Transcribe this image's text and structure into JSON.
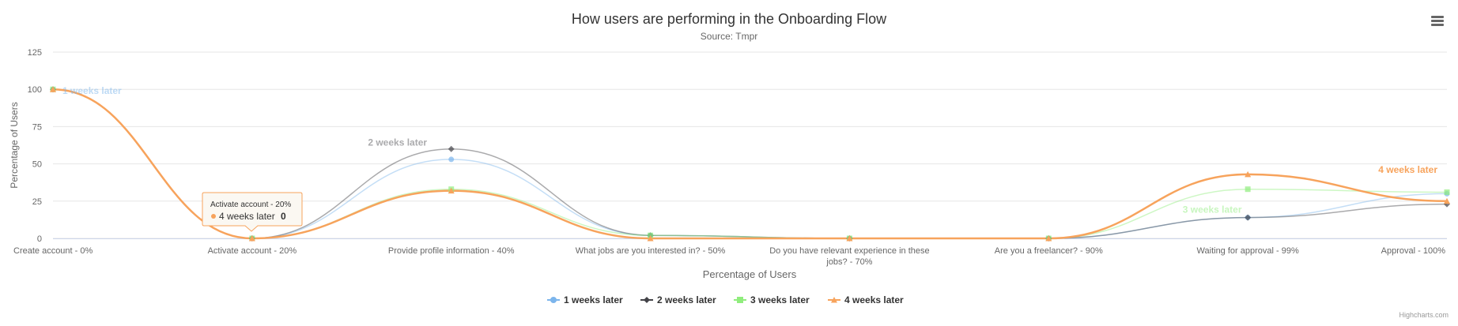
{
  "chart_data": {
    "type": "line",
    "title": "How users are performing in the Onboarding Flow",
    "subtitle": "Source: Tmpr",
    "xlabel": "Percentage of Users",
    "ylabel": "Percentage of Users",
    "ylim": [
      0,
      125
    ],
    "yticks": [
      0,
      25,
      50,
      75,
      100,
      125
    ],
    "grid": true,
    "legend_position": "bottom-center",
    "categories": [
      "Create account - 0%",
      "Activate account - 20%",
      "Provide profile information - 40%",
      "What jobs are you interested in? - 50%",
      "Do you have relevant experience in these jobs? - 70%",
      "Are you a freelancer? - 90%",
      "Waiting for approval - 99%",
      "Approval - 100%"
    ],
    "series": [
      {
        "name": "1 weeks later",
        "color": "#7cb5ec",
        "marker": "circle",
        "values": [
          100,
          0,
          53,
          2,
          0,
          0,
          14,
          30
        ]
      },
      {
        "name": "2 weeks later",
        "color": "#434348",
        "marker": "diamond",
        "values": [
          100,
          0,
          60,
          2,
          0,
          0,
          14,
          23
        ]
      },
      {
        "name": "3 weeks later",
        "color": "#90ed7d",
        "marker": "square",
        "values": [
          100,
          0,
          33,
          2,
          0,
          0,
          33,
          31
        ]
      },
      {
        "name": "4 weeks later",
        "color": "#f7a35c",
        "marker": "triangle",
        "values": [
          100,
          0,
          32,
          0,
          0,
          0,
          43,
          25
        ]
      }
    ],
    "series_labels": [
      "1 weeks later",
      "2 weeks later",
      "3 weeks later",
      "4 weeks later"
    ],
    "tooltip": {
      "header": "Activate account - 20%",
      "series_name": "4 weeks later",
      "value": "0",
      "category_index": 1,
      "series_index": 3
    },
    "credits": "Highcharts.com"
  },
  "menu": {
    "icon": "hamburger-menu-icon"
  }
}
